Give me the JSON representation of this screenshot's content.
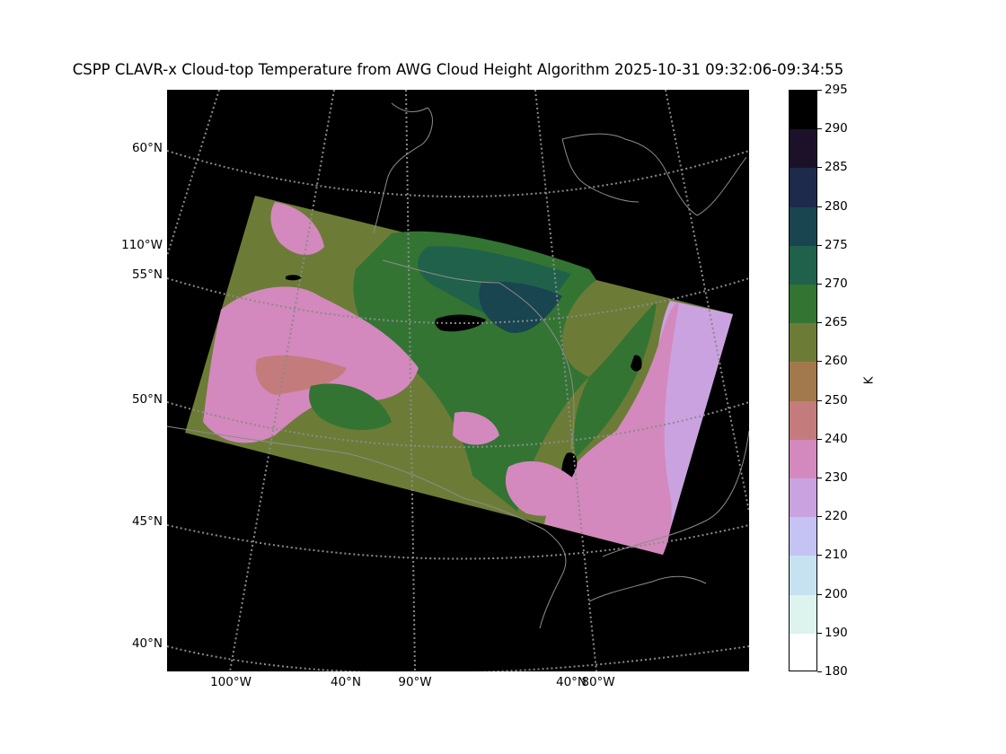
{
  "title": "CSPP CLAVR-x Cloud-top Temperature from AWG Cloud Height Algorithm 2025-10-31 09:32:06-09:34:55",
  "map": {
    "latitude_labels": [
      "60°N",
      "55°N",
      "50°N",
      "45°N",
      "40°N"
    ],
    "left_longitude_label": "110°W",
    "bottom_labels": [
      "100°W",
      "40°N",
      "90°W",
      "40°N",
      "80°W"
    ],
    "background_color": "#000000",
    "graticule_color": "#8a8a8a",
    "coastline_color": "#8c8c8c"
  },
  "colorbar": {
    "unit": "K",
    "tick_labels": [
      "295",
      "290",
      "285",
      "280",
      "275",
      "270",
      "265",
      "260",
      "250",
      "240",
      "230",
      "220",
      "210",
      "200",
      "190",
      "180"
    ],
    "bins": [
      {
        "color": "#000000"
      },
      {
        "color": "#1d1129"
      },
      {
        "color": "#1d2a4b"
      },
      {
        "color": "#184550"
      },
      {
        "color": "#1f614b"
      },
      {
        "color": "#337433"
      },
      {
        "color": "#6c7c37"
      },
      {
        "color": "#a1794c"
      },
      {
        "color": "#c37c7b"
      },
      {
        "color": "#d389bd"
      },
      {
        "color": "#cba2e0"
      },
      {
        "color": "#c4c3f3"
      },
      {
        "color": "#c6e2f1"
      },
      {
        "color": "#ddf3ee"
      },
      {
        "color": "#ffffff"
      }
    ]
  }
}
